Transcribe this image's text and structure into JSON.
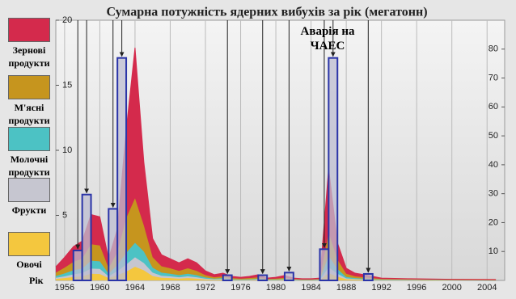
{
  "chart_data": {
    "type": "area",
    "title": "Сумарна потужність ядерних вибухів за рік (мегатонн)",
    "x_label": "Рік",
    "annotation": "Аварія на ЧАЕС",
    "x": [
      1955,
      1956,
      1957,
      1958,
      1959,
      1960,
      1961,
      1962,
      1963,
      1964,
      1965,
      1966,
      1967,
      1968,
      1969,
      1970,
      1971,
      1972,
      1973,
      1974,
      1975,
      1976,
      1977,
      1978,
      1979,
      1980,
      1981,
      1982,
      1983,
      1984,
      1985,
      1986,
      1987,
      1988,
      1989,
      1990,
      1991,
      1992,
      1995,
      2000,
      2005
    ],
    "series": [
      {
        "name": "Овочі",
        "color": "#f4c73e",
        "axis": "y2",
        "values": [
          0.5,
          0.8,
          1.2,
          1.4,
          2.3,
          2.2,
          0.8,
          1.8,
          3,
          4.7,
          3.5,
          1.5,
          0.9,
          0.8,
          0.6,
          0.8,
          0.6,
          0.3,
          0.2,
          0.3,
          0.1,
          0.1,
          0.1,
          0.2,
          0.1,
          0.1,
          0.2,
          0.1,
          0.1,
          0.1,
          0.1,
          2.5,
          1.3,
          0.4,
          0.3,
          0.2,
          0.1,
          0.1,
          0.1,
          0,
          0
        ]
      },
      {
        "name": "Фрукти",
        "color": "#c6c6d0",
        "axis": "y2",
        "values": [
          0.4,
          0.6,
          0.9,
          1.1,
          1.8,
          1.8,
          0.6,
          1.4,
          2.5,
          3.3,
          2.5,
          1.2,
          0.7,
          0.6,
          0.5,
          0.6,
          0.5,
          0.3,
          0.2,
          0.2,
          0.1,
          0.1,
          0.1,
          0.2,
          0.1,
          0.1,
          0.1,
          0.1,
          0,
          0,
          0.1,
          2,
          1,
          0.3,
          0.2,
          0.2,
          0.1,
          0.1,
          0.1,
          0,
          0
        ]
      },
      {
        "name": "Молочні продукти",
        "color": "#4cc2c4",
        "axis": "y2",
        "values": [
          0.6,
          1,
          1.4,
          1.6,
          2.7,
          2.6,
          0.9,
          2.1,
          4,
          5,
          4,
          1.7,
          1.1,
          0.9,
          0.7,
          0.9,
          0.7,
          0.4,
          0.2,
          0.3,
          0.2,
          0.1,
          0.2,
          0.2,
          0.1,
          0.1,
          0.2,
          0.1,
          0.1,
          0.1,
          0.1,
          4,
          1.6,
          0.5,
          0.3,
          0.2,
          0.2,
          0.1,
          0.1,
          0.1,
          0
        ]
      },
      {
        "name": "М'ясні продукти",
        "color": "#c6951e",
        "axis": "y2",
        "values": [
          1.2,
          2,
          2.9,
          3.4,
          5.7,
          5.5,
          1.9,
          4.5,
          12,
          15.4,
          9,
          3.6,
          2.2,
          1.9,
          1.5,
          1.9,
          1.5,
          0.8,
          0.5,
          0.6,
          0.4,
          0.3,
          0.4,
          0.5,
          0.2,
          0.3,
          0.4,
          0.2,
          0.1,
          0.1,
          0.2,
          8,
          3.3,
          1.1,
          0.6,
          0.5,
          0.4,
          0.2,
          0.1,
          0.1,
          0.1
        ]
      },
      {
        "name": "Зернові продукти",
        "color": "#d42a4c",
        "axis": "y2",
        "values": [
          2,
          3.6,
          5.3,
          6.1,
          10.3,
          9.9,
          3.3,
          8,
          30.5,
          52.1,
          22,
          6.5,
          4,
          3.3,
          2.8,
          3.3,
          2.8,
          1.5,
          0.9,
          1.1,
          0.6,
          0.5,
          0.6,
          0.9,
          0.3,
          0.5,
          0.8,
          0.3,
          0.3,
          0.3,
          0.3,
          22.2,
          5.8,
          1.9,
          1.1,
          0.9,
          0.6,
          0.3,
          0.2,
          0.2,
          0.2
        ]
      }
    ],
    "bars": {
      "color": "#2a34a8",
      "x": [
        1957,
        1958,
        1961,
        1962,
        1974,
        1978,
        1981,
        1985,
        1986,
        1990
      ],
      "values": [
        2.3,
        6.6,
        5.5,
        17.1,
        0.4,
        0.4,
        0.6,
        2.4,
        17.1,
        0.5
      ]
    },
    "xlim": [
      1955,
      2006
    ],
    "xticks": [
      1956,
      1960,
      1964,
      1968,
      1972,
      1976,
      1980,
      1984,
      1988,
      1992,
      1996,
      2000,
      2004
    ],
    "ylim": [
      0,
      20
    ],
    "yticks": [
      5,
      10,
      15,
      20
    ],
    "y2lim": [
      0,
      90
    ],
    "y2ticks": [
      10,
      20,
      30,
      40,
      50,
      60,
      70,
      80
    ],
    "grid": true
  }
}
